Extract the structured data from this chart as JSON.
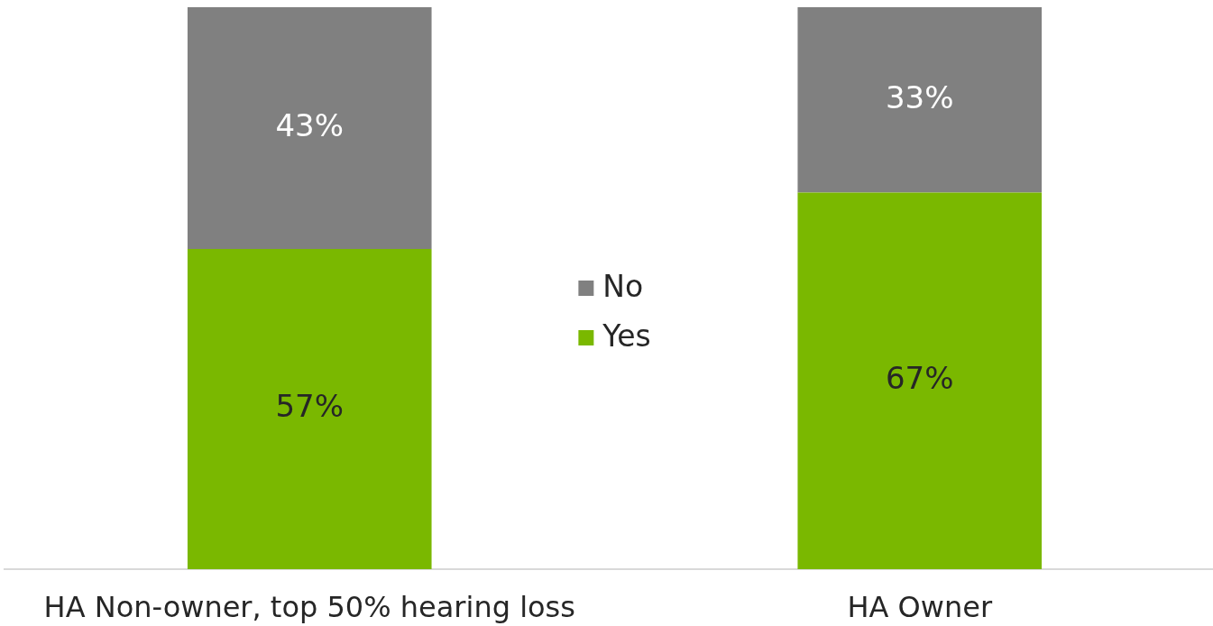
{
  "chart_data": {
    "type": "bar",
    "categories": [
      "HA Non-owner, top 50% hearing loss",
      "HA Owner"
    ],
    "series": [
      {
        "name": "Yes",
        "color": "#7ab800",
        "values": [
          57,
          67
        ],
        "value_labels": [
          "57%",
          "67%"
        ]
      },
      {
        "name": "No",
        "color": "#808080",
        "values": [
          43,
          33
        ],
        "value_labels": [
          "43%",
          "33%"
        ]
      }
    ],
    "stacked": true,
    "ylim": [
      0,
      100
    ],
    "legend": "center",
    "tick_labels": "x"
  }
}
